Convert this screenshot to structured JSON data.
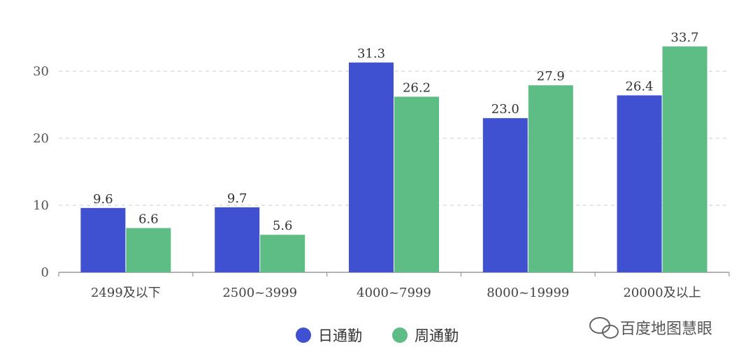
{
  "chart_data": {
    "type": "bar",
    "categories": [
      "2499及以下",
      "2500~3999",
      "4000~7999",
      "8000~19999",
      "20000及以上"
    ],
    "series": [
      {
        "name": "日通勤",
        "color": "#3f51d1",
        "values": [
          9.6,
          9.7,
          31.3,
          23.0,
          26.4
        ]
      },
      {
        "name": "周通勤",
        "color": "#5dbd85",
        "values": [
          6.6,
          5.6,
          26.2,
          27.9,
          33.7
        ]
      }
    ],
    "ylim": [
      0,
      35
    ],
    "yticks": [
      0,
      10,
      20,
      30
    ],
    "grid": true,
    "legend_position": "bottom-center",
    "title": "",
    "xlabel": "",
    "ylabel": ""
  },
  "watermark": {
    "text": "百度地图慧眼",
    "icon": "wechat-icon"
  }
}
